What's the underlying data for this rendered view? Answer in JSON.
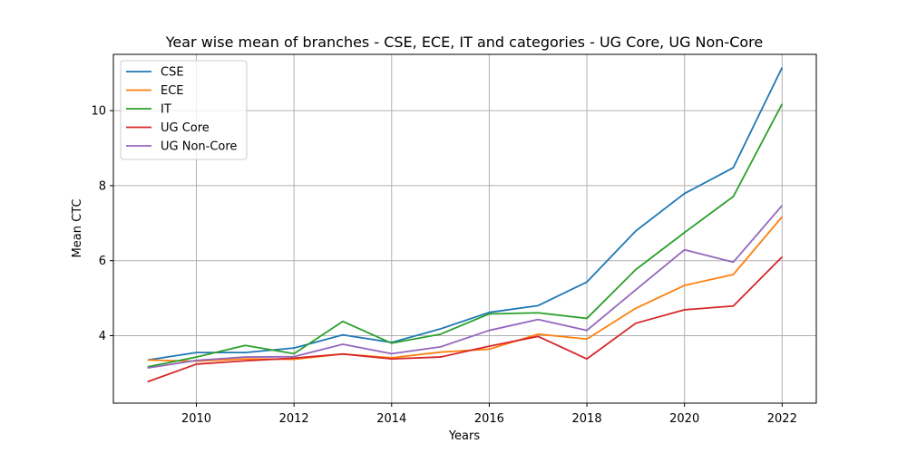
{
  "chart_data": {
    "type": "line",
    "title": "Year wise mean of branches - CSE, ECE, IT and categories - UG Core, UG Non-Core",
    "xlabel": "Years",
    "ylabel": "Mean CTC",
    "x": [
      2009,
      2010,
      2011,
      2012,
      2013,
      2014,
      2015,
      2016,
      2017,
      2018,
      2019,
      2020,
      2021,
      2022
    ],
    "xlim": [
      2008.3,
      2022.7
    ],
    "ylim": [
      2.2,
      11.5
    ],
    "xticks": [
      2010,
      2012,
      2014,
      2016,
      2018,
      2020,
      2022
    ],
    "yticks": [
      4,
      6,
      8,
      10
    ],
    "grid": true,
    "legend_position": "top-left",
    "series": [
      {
        "name": "CSE",
        "color": "#1f77b4",
        "values": [
          3.35,
          3.55,
          3.55,
          3.67,
          4.02,
          3.82,
          4.18,
          4.62,
          4.8,
          5.43,
          6.79,
          7.79,
          8.48,
          11.15
        ]
      },
      {
        "name": "ECE",
        "color": "#ff7f0e",
        "values": [
          3.35,
          3.32,
          3.38,
          3.37,
          3.51,
          3.41,
          3.56,
          3.64,
          4.04,
          3.91,
          4.73,
          5.34,
          5.63,
          7.17
        ]
      },
      {
        "name": "IT",
        "color": "#2ca02c",
        "values": [
          3.17,
          3.43,
          3.74,
          3.52,
          4.38,
          3.8,
          4.04,
          4.58,
          4.61,
          4.46,
          5.76,
          6.75,
          7.71,
          10.18
        ]
      },
      {
        "name": "UG Core",
        "color": "#d62728",
        "values": [
          2.77,
          3.24,
          3.33,
          3.4,
          3.51,
          3.38,
          3.43,
          3.72,
          3.98,
          3.38,
          4.33,
          4.69,
          4.79,
          6.1
        ]
      },
      {
        "name": "UG Non-Core",
        "color": "#9467bd",
        "values": [
          3.14,
          3.34,
          3.43,
          3.44,
          3.77,
          3.52,
          3.7,
          4.14,
          4.43,
          4.14,
          5.22,
          6.29,
          5.96,
          7.47
        ]
      }
    ]
  }
}
